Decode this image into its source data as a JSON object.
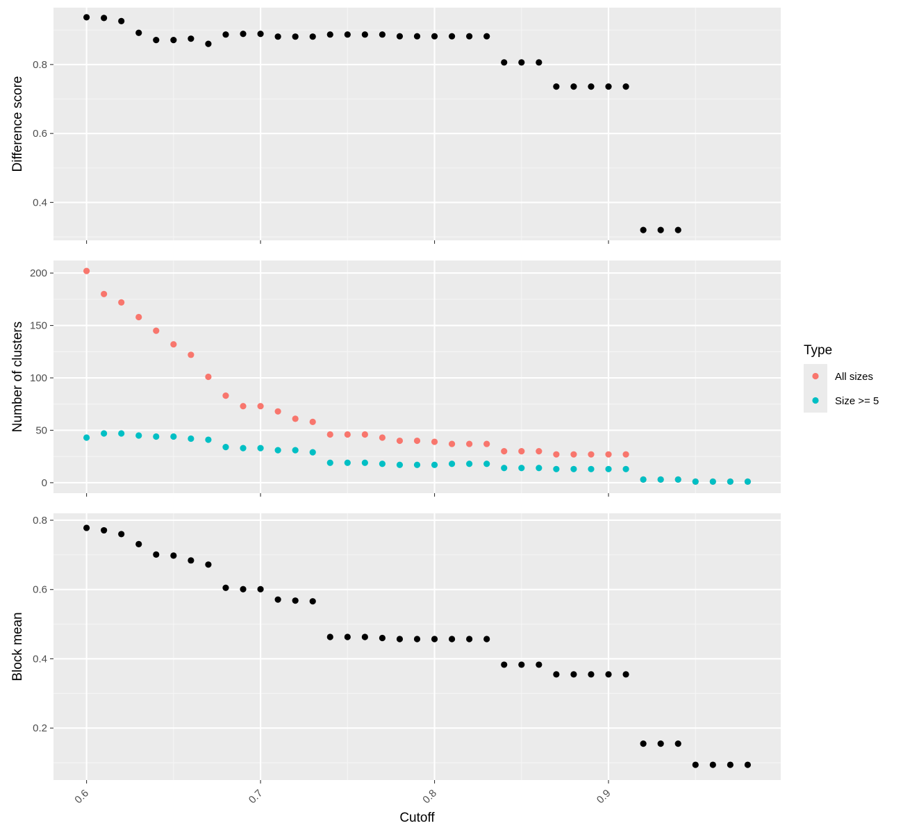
{
  "colors": {
    "panel_bg": "#ebebeb",
    "grid_major": "#ffffff",
    "grid_minor": "#f5f5f5",
    "tick": "#333333",
    "point_default": "#000000",
    "all_sizes": "#f8766d",
    "size_ge_5": "#00bfc4"
  },
  "xlabel": "Cutoff",
  "legend": {
    "title": "Type",
    "items": [
      "All sizes",
      "Size >= 5"
    ]
  },
  "chart_data": [
    {
      "type": "scatter",
      "title": "",
      "xlabel": "Cutoff",
      "ylabel": "Difference score",
      "xlim": [
        0.581,
        0.999
      ],
      "ylim": [
        0.29,
        0.965
      ],
      "xticks": [
        0.6,
        0.7,
        0.8,
        0.9
      ],
      "xtick_labels": [
        "0.6",
        "0.7",
        "0.8",
        "0.9"
      ],
      "yticks": [
        0.4,
        0.6,
        0.8
      ],
      "ytick_labels": [
        "0.4",
        "0.6",
        "0.8"
      ],
      "grid": true,
      "series": [
        {
          "color": "#000000",
          "x": [
            0.6,
            0.61,
            0.62,
            0.63,
            0.64,
            0.65,
            0.66,
            0.67,
            0.68,
            0.69,
            0.7,
            0.71,
            0.72,
            0.73,
            0.74,
            0.75,
            0.76,
            0.77,
            0.78,
            0.79,
            0.8,
            0.81,
            0.82,
            0.83,
            0.84,
            0.85,
            0.86,
            0.87,
            0.88,
            0.89,
            0.9,
            0.91,
            0.92,
            0.93,
            0.94
          ],
          "y": [
            0.937,
            0.935,
            0.926,
            0.892,
            0.871,
            0.871,
            0.875,
            0.86,
            0.887,
            0.889,
            0.889,
            0.881,
            0.881,
            0.881,
            0.887,
            0.887,
            0.887,
            0.887,
            0.882,
            0.882,
            0.882,
            0.882,
            0.882,
            0.882,
            0.806,
            0.806,
            0.806,
            0.736,
            0.736,
            0.736,
            0.736,
            0.736,
            0.32,
            0.32,
            0.32
          ]
        }
      ]
    },
    {
      "type": "scatter",
      "title": "",
      "xlabel": "Cutoff",
      "ylabel": "Number of clusters",
      "xlim": [
        0.581,
        0.999
      ],
      "ylim": [
        -10,
        212
      ],
      "xticks": [
        0.6,
        0.7,
        0.8,
        0.9
      ],
      "xtick_labels": [
        "0.6",
        "0.7",
        "0.8",
        "0.9"
      ],
      "yticks": [
        0,
        50,
        100,
        150,
        200
      ],
      "ytick_labels": [
        "0",
        "50",
        "100",
        "150",
        "200"
      ],
      "grid": true,
      "legend_position": "right",
      "series": [
        {
          "name": "All sizes",
          "color": "#f8766d",
          "x": [
            0.6,
            0.61,
            0.62,
            0.63,
            0.64,
            0.65,
            0.66,
            0.67,
            0.68,
            0.69,
            0.7,
            0.71,
            0.72,
            0.73,
            0.74,
            0.75,
            0.76,
            0.77,
            0.78,
            0.79,
            0.8,
            0.81,
            0.82,
            0.83,
            0.84,
            0.85,
            0.86,
            0.87,
            0.88,
            0.89,
            0.9,
            0.91,
            0.92,
            0.93,
            0.94,
            0.95,
            0.96,
            0.97,
            0.98
          ],
          "y": [
            202,
            180,
            172,
            158,
            145,
            132,
            122,
            101,
            83,
            73,
            73,
            68,
            61,
            58,
            46,
            46,
            46,
            43,
            40,
            40,
            39,
            37,
            37,
            37,
            30,
            30,
            30,
            27,
            27,
            27,
            27,
            27,
            3,
            3,
            3,
            1,
            1,
            1,
            1
          ]
        },
        {
          "name": "Size >= 5",
          "color": "#00bfc4",
          "x": [
            0.6,
            0.61,
            0.62,
            0.63,
            0.64,
            0.65,
            0.66,
            0.67,
            0.68,
            0.69,
            0.7,
            0.71,
            0.72,
            0.73,
            0.74,
            0.75,
            0.76,
            0.77,
            0.78,
            0.79,
            0.8,
            0.81,
            0.82,
            0.83,
            0.84,
            0.85,
            0.86,
            0.87,
            0.88,
            0.89,
            0.9,
            0.91,
            0.92,
            0.93,
            0.94,
            0.95,
            0.96,
            0.97,
            0.98
          ],
          "y": [
            43,
            47,
            47,
            45,
            44,
            44,
            42,
            41,
            34,
            33,
            33,
            31,
            31,
            29,
            19,
            19,
            19,
            18,
            17,
            17,
            17,
            18,
            18,
            18,
            14,
            14,
            14,
            13,
            13,
            13,
            13,
            13,
            3,
            3,
            3,
            1,
            1,
            1,
            1
          ]
        }
      ]
    },
    {
      "type": "scatter",
      "title": "",
      "xlabel": "Cutoff",
      "ylabel": "Block mean",
      "xlim": [
        0.581,
        0.999
      ],
      "ylim": [
        0.05,
        0.82
      ],
      "xticks": [
        0.6,
        0.7,
        0.8,
        0.9
      ],
      "xtick_labels": [
        "0.6",
        "0.7",
        "0.8",
        "0.9"
      ],
      "yticks": [
        0.2,
        0.4,
        0.6,
        0.8
      ],
      "ytick_labels": [
        "0.2",
        "0.4",
        "0.6",
        "0.8"
      ],
      "grid": true,
      "series": [
        {
          "color": "#000000",
          "x": [
            0.6,
            0.61,
            0.62,
            0.63,
            0.64,
            0.65,
            0.66,
            0.67,
            0.68,
            0.69,
            0.7,
            0.71,
            0.72,
            0.73,
            0.74,
            0.75,
            0.76,
            0.77,
            0.78,
            0.79,
            0.8,
            0.81,
            0.82,
            0.83,
            0.84,
            0.85,
            0.86,
            0.87,
            0.88,
            0.89,
            0.9,
            0.91,
            0.92,
            0.93,
            0.94,
            0.95,
            0.96,
            0.97,
            0.98
          ],
          "y": [
            0.778,
            0.771,
            0.76,
            0.731,
            0.701,
            0.698,
            0.684,
            0.672,
            0.605,
            0.601,
            0.601,
            0.571,
            0.568,
            0.566,
            0.463,
            0.463,
            0.463,
            0.46,
            0.457,
            0.457,
            0.457,
            0.457,
            0.457,
            0.457,
            0.383,
            0.383,
            0.383,
            0.355,
            0.355,
            0.355,
            0.355,
            0.355,
            0.155,
            0.155,
            0.155,
            0.094,
            0.094,
            0.094,
            0.094
          ]
        }
      ]
    }
  ]
}
